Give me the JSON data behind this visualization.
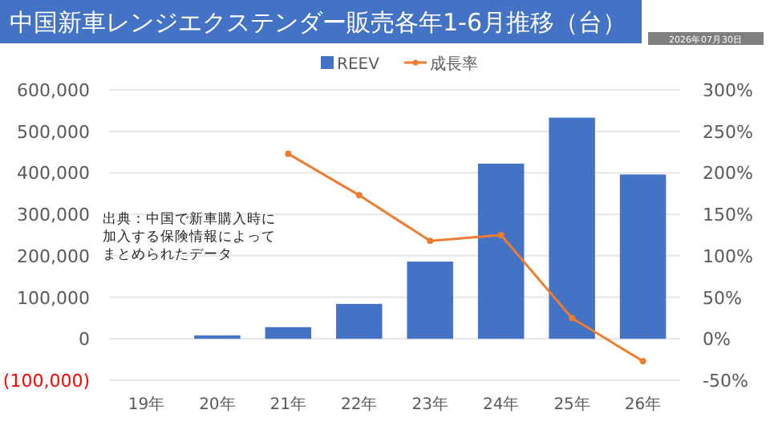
{
  "chart_data": {
    "type": "bar",
    "title": "中国新車レンジエクステンダー販売各年1-6月推移（台）",
    "categories": [
      "19年",
      "20年",
      "21年",
      "22年",
      "23年",
      "24年",
      "25年",
      "26年"
    ],
    "series": [
      {
        "name": "REEV",
        "color": "#4472c4",
        "values": [
          0,
          8000,
          28000,
          84000,
          186000,
          422000,
          533000,
          396000
        ]
      },
      {
        "name": "成長率",
        "type": "line",
        "axis": "y2",
        "color": "#ed7d31",
        "marker": "circle",
        "values": [
          null,
          null,
          223,
          173,
          118,
          125,
          25,
          -27
        ]
      }
    ],
    "ylim": [
      -100000,
      600000
    ],
    "yticks": [
      {
        "value": -100000,
        "label": "(100,000)"
      },
      {
        "value": 0,
        "label": "0"
      },
      {
        "value": 100000,
        "label": "100,000"
      },
      {
        "value": 200000,
        "label": "200,000"
      },
      {
        "value": 300000,
        "label": "300,000"
      },
      {
        "value": 400000,
        "label": "400,000"
      },
      {
        "value": 500000,
        "label": "500,000"
      },
      {
        "value": 600000,
        "label": "600,000"
      }
    ],
    "y2lim": [
      -50,
      300
    ],
    "y2ticks": [
      {
        "value": -50,
        "label": "-50%"
      },
      {
        "value": 0,
        "label": "0%"
      },
      {
        "value": 50,
        "label": "50%"
      },
      {
        "value": 100,
        "label": "100%"
      },
      {
        "value": 150,
        "label": "150%"
      },
      {
        "value": 200,
        "label": "200%"
      },
      {
        "value": 250,
        "label": "250%"
      },
      {
        "value": 300,
        "label": "300%"
      }
    ],
    "grid": "y",
    "legend": "top",
    "annotations": [
      "出典：中国で新車購入時に加入する保険情報によってまとめられたデータ",
      "2026年07月30日"
    ]
  }
}
